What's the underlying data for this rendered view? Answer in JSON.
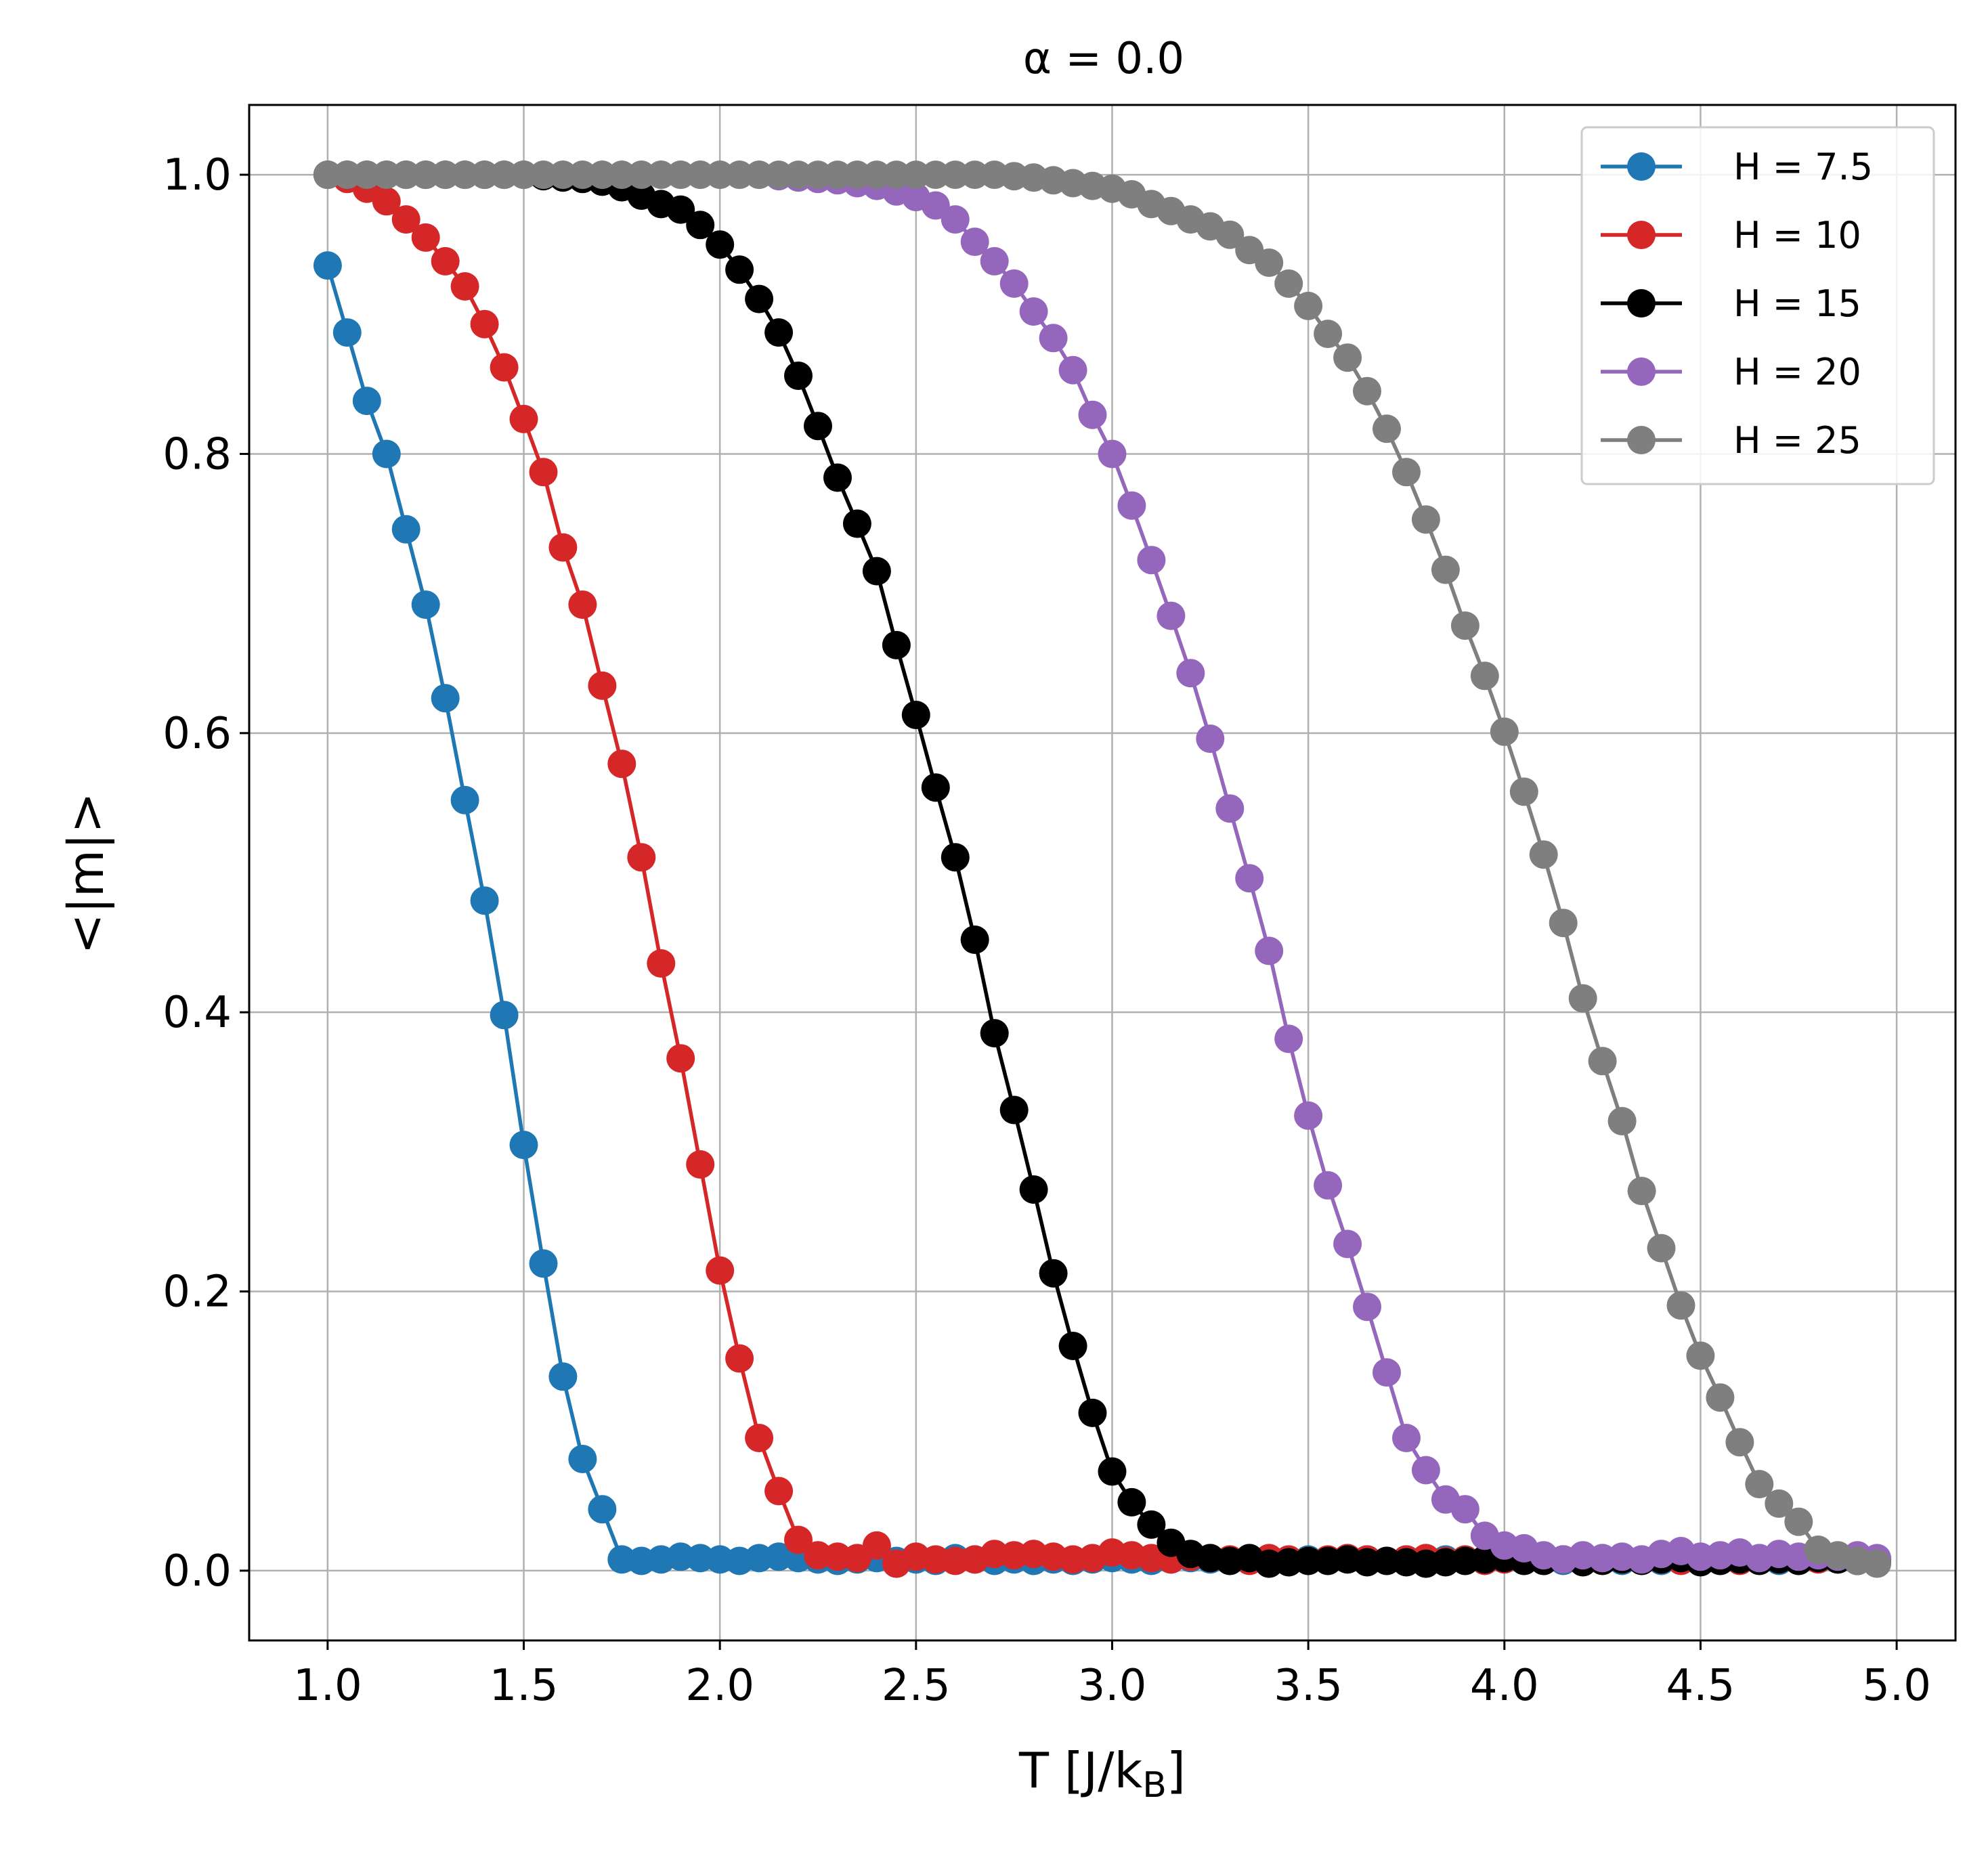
{
  "chart_data": {
    "type": "line",
    "title": "α = 0.0",
    "xlabel": "T [J/k",
    "xlabel_sub": "B",
    "xlabel_end": "]",
    "ylabel": "<|m|>",
    "xlim": [
      0.8,
      5.15
    ],
    "ylim": [
      -0.05,
      1.05
    ],
    "xticks": [
      "1.0",
      "1.5",
      "2.0",
      "2.5",
      "3.0",
      "3.5",
      "4.0",
      "4.5",
      "5.0"
    ],
    "yticks": [
      "0.0",
      "0.2",
      "0.4",
      "0.6",
      "0.8",
      "1.0"
    ],
    "grid": true,
    "legend_position": "top-right",
    "x": [
      1.0,
      1.05,
      1.1,
      1.15,
      1.2,
      1.25,
      1.3,
      1.35,
      1.4,
      1.45,
      1.5,
      1.55,
      1.6,
      1.65,
      1.7,
      1.75,
      1.8,
      1.85,
      1.9,
      1.95,
      2.0,
      2.05,
      2.1,
      2.15,
      2.2,
      2.25,
      2.3,
      2.35,
      2.4,
      2.45,
      2.5,
      2.55,
      2.6,
      2.65,
      2.7,
      2.75,
      2.8,
      2.85,
      2.9,
      2.95,
      3.0,
      3.05,
      3.1,
      3.15,
      3.2,
      3.25,
      3.3,
      3.35,
      3.4,
      3.45,
      3.5,
      3.55,
      3.6,
      3.65,
      3.7,
      3.75,
      3.8,
      3.85,
      3.9,
      3.95,
      4.0,
      4.05,
      4.1,
      4.15,
      4.2,
      4.25,
      4.3,
      4.35,
      4.4,
      4.45,
      4.5,
      4.55,
      4.6,
      4.65,
      4.7,
      4.75,
      4.8,
      4.85,
      4.9,
      4.95
    ],
    "series": [
      {
        "name": "H = 7.5",
        "color": "#1f77b4",
        "values": [
          0.935,
          0.887,
          0.838,
          0.8,
          0.746,
          0.692,
          0.625,
          0.552,
          0.48,
          0.398,
          0.305,
          0.22,
          0.139,
          0.08,
          0.044,
          0.008,
          0.007,
          0.008,
          0.01,
          0.009,
          0.008,
          0.007,
          0.009,
          0.01,
          0.009,
          0.008,
          0.007,
          0.008,
          0.009,
          0.007,
          0.008,
          0.007,
          0.009,
          0.008,
          0.007,
          0.008,
          0.007,
          0.008,
          0.007,
          0.008,
          0.009,
          0.008,
          0.007,
          0.008,
          0.009,
          0.008,
          0.007,
          0.009,
          0.008,
          0.007,
          0.008,
          0.007,
          0.009,
          0.008,
          0.007,
          0.008,
          0.009,
          0.008,
          0.007,
          0.008,
          0.009,
          0.007,
          0.008,
          0.007,
          0.008,
          0.009,
          0.007,
          0.008,
          0.007,
          0.009,
          0.008,
          0.007,
          0.008,
          0.009,
          0.007,
          0.008,
          0.009,
          0.008,
          0.007,
          0.008
        ]
      },
      {
        "name": "H = 10",
        "color": "#d62728",
        "values": [
          1.0,
          0.997,
          0.99,
          0.981,
          0.968,
          0.955,
          0.938,
          0.92,
          0.893,
          0.862,
          0.825,
          0.787,
          0.733,
          0.692,
          0.634,
          0.578,
          0.511,
          0.435,
          0.367,
          0.291,
          0.215,
          0.152,
          0.095,
          0.057,
          0.022,
          0.011,
          0.01,
          0.009,
          0.018,
          0.005,
          0.01,
          0.008,
          0.007,
          0.008,
          0.012,
          0.011,
          0.012,
          0.01,
          0.008,
          0.009,
          0.013,
          0.011,
          0.009,
          0.008,
          0.01,
          0.009,
          0.008,
          0.007,
          0.009,
          0.008,
          0.007,
          0.008,
          0.009,
          0.008,
          0.007,
          0.008,
          0.009,
          0.007,
          0.008,
          0.007,
          0.008,
          0.009,
          0.007,
          0.008,
          0.007,
          0.008,
          0.009,
          0.007,
          0.008,
          0.007,
          0.008,
          0.009,
          0.007,
          0.008,
          0.009,
          0.007,
          0.008,
          0.009,
          0.007,
          0.008
        ]
      },
      {
        "name": "H = 15",
        "color": "#000000",
        "values": [
          1.0,
          1.0,
          1.0,
          1.0,
          1.0,
          1.0,
          1.0,
          1.0,
          1.0,
          1.0,
          1.0,
          0.999,
          0.998,
          0.997,
          0.995,
          0.991,
          0.985,
          0.979,
          0.975,
          0.964,
          0.95,
          0.932,
          0.911,
          0.887,
          0.856,
          0.82,
          0.783,
          0.75,
          0.716,
          0.663,
          0.613,
          0.561,
          0.511,
          0.452,
          0.385,
          0.33,
          0.273,
          0.213,
          0.161,
          0.113,
          0.071,
          0.049,
          0.033,
          0.02,
          0.012,
          0.009,
          0.007,
          0.009,
          0.005,
          0.006,
          0.007,
          0.007,
          0.008,
          0.006,
          0.007,
          0.006,
          0.005,
          0.006,
          0.007,
          0.008,
          0.009,
          0.007,
          0.007,
          0.008,
          0.006,
          0.007,
          0.008,
          0.007,
          0.008,
          0.009,
          0.006,
          0.007,
          0.008,
          0.007,
          0.008,
          0.007,
          0.009,
          0.008,
          0.007,
          0.006
        ]
      },
      {
        "name": "H = 20",
        "color": "#9467bd",
        "values": [
          1.0,
          1.0,
          1.0,
          1.0,
          1.0,
          1.0,
          1.0,
          1.0,
          1.0,
          1.0,
          1.0,
          1.0,
          1.0,
          1.0,
          1.0,
          1.0,
          1.0,
          1.0,
          1.0,
          1.0,
          1.0,
          1.0,
          1.0,
          0.999,
          0.998,
          0.997,
          0.996,
          0.994,
          0.992,
          0.988,
          0.984,
          0.978,
          0.968,
          0.952,
          0.938,
          0.922,
          0.902,
          0.883,
          0.86,
          0.828,
          0.8,
          0.763,
          0.724,
          0.684,
          0.643,
          0.596,
          0.546,
          0.496,
          0.444,
          0.381,
          0.326,
          0.276,
          0.234,
          0.189,
          0.142,
          0.095,
          0.072,
          0.051,
          0.044,
          0.025,
          0.018,
          0.016,
          0.011,
          0.008,
          0.011,
          0.009,
          0.01,
          0.008,
          0.012,
          0.014,
          0.01,
          0.011,
          0.013,
          0.009,
          0.012,
          0.01,
          0.011,
          0.01,
          0.011,
          0.009
        ]
      },
      {
        "name": "H = 25",
        "color": "#7f7f7f",
        "values": [
          1.0,
          1.0,
          1.0,
          1.0,
          1.0,
          1.0,
          1.0,
          1.0,
          1.0,
          1.0,
          1.0,
          1.0,
          1.0,
          1.0,
          1.0,
          1.0,
          1.0,
          1.0,
          1.0,
          1.0,
          1.0,
          1.0,
          1.0,
          1.0,
          1.0,
          1.0,
          1.0,
          1.0,
          1.0,
          1.0,
          1.0,
          1.0,
          1.0,
          1.0,
          1.0,
          0.999,
          0.998,
          0.996,
          0.994,
          0.992,
          0.99,
          0.986,
          0.979,
          0.974,
          0.968,
          0.963,
          0.957,
          0.946,
          0.937,
          0.922,
          0.906,
          0.886,
          0.869,
          0.845,
          0.818,
          0.787,
          0.753,
          0.717,
          0.677,
          0.641,
          0.601,
          0.558,
          0.513,
          0.464,
          0.41,
          0.365,
          0.322,
          0.272,
          0.231,
          0.19,
          0.154,
          0.124,
          0.092,
          0.062,
          0.048,
          0.035,
          0.015,
          0.011,
          0.007,
          0.005
        ]
      }
    ]
  }
}
